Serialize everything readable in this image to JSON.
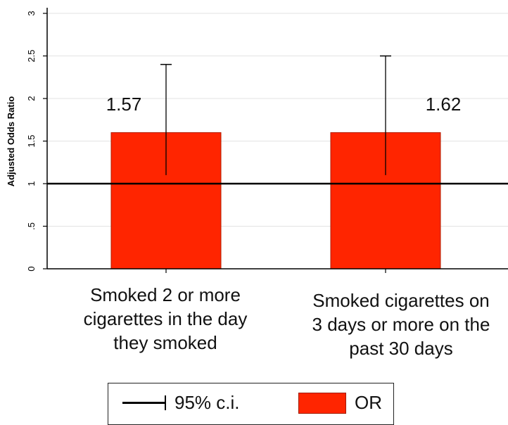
{
  "chart_data": {
    "type": "bar",
    "ylabel": "Adjusted Odds Ratio",
    "ylim": [
      0,
      3
    ],
    "yticks": [
      "0",
      ".5",
      "1",
      "1.5",
      "2",
      "2.5",
      "3"
    ],
    "grid": true,
    "reference_line": 1,
    "categories": [
      {
        "lines": [
          "Smoked 2 or more",
          "cigarettes in the day",
          "they smoked"
        ]
      },
      {
        "lines": [
          "Smoked cigarettes on",
          "3 days or more on the",
          "past 30 days"
        ]
      }
    ],
    "values": [
      1.6,
      1.6
    ],
    "value_labels": [
      "1.57",
      "1.62"
    ],
    "ci_upper": [
      2.4,
      2.5
    ],
    "ci_lower": [
      1.1,
      1.1
    ],
    "legend": {
      "placement": "bottom",
      "items": [
        {
          "type": "line",
          "label": "95% c.i."
        },
        {
          "type": "bar",
          "label": "OR"
        }
      ]
    },
    "colors": {
      "bar": "#ff2500",
      "bar_edge": "#b01c00",
      "ci": "#000000",
      "reference": "#000000",
      "grid": "#e3e3e3",
      "axis": "#000000"
    }
  }
}
